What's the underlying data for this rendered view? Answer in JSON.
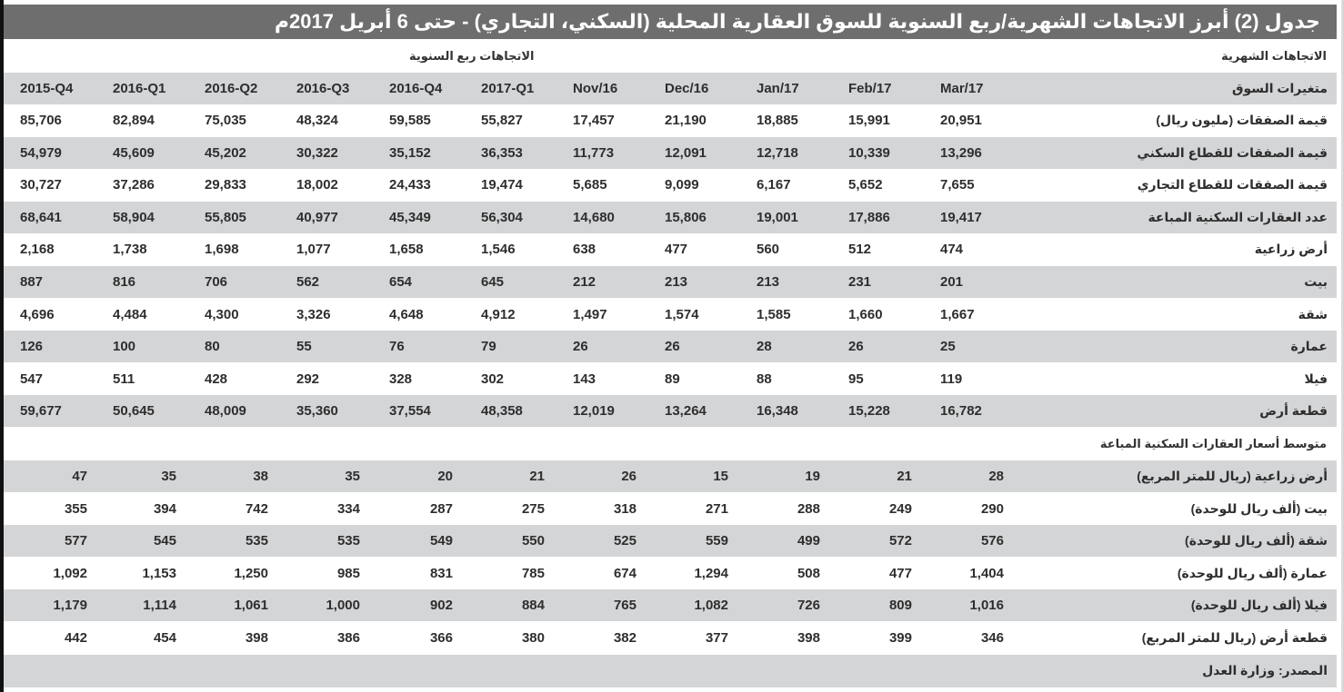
{
  "title": "جدول (2) أبرز الاتجاهات الشهرية/ربع السنوية للسوق العقارية المحلية (السكني، التجاري) - حتى 6 أبريل 2017م",
  "section_monthly": "الاتجاهات الشهرية",
  "section_quarterly": "الاتجاهات ربع السنوية",
  "header": {
    "label": "متغيرات السوق",
    "columns": [
      "2015-Q4",
      "2016-Q1",
      "2016-Q2",
      "2016-Q3",
      "2016-Q4",
      "2017-Q1",
      "Nov/16",
      "Dec/16",
      "Jan/17",
      "Feb/17",
      "Mar/17"
    ]
  },
  "rows": [
    {
      "label": "قيمة الصفقات (مليون ريال)",
      "values": [
        "85,706",
        "82,894",
        "75,035",
        "48,324",
        "59,585",
        "55,827",
        "17,457",
        "21,190",
        "18,885",
        "15,991",
        "20,951"
      ]
    },
    {
      "label": "قيمة الصفقات للقطاع السكني",
      "values": [
        "54,979",
        "45,609",
        "45,202",
        "30,322",
        "35,152",
        "36,353",
        "11,773",
        "12,091",
        "12,718",
        "10,339",
        "13,296"
      ]
    },
    {
      "label": "قيمة الصفقات للقطاع التجاري",
      "values": [
        "30,727",
        "37,286",
        "29,833",
        "18,002",
        "24,433",
        "19,474",
        "5,685",
        "9,099",
        "6,167",
        "5,652",
        "7,655"
      ]
    },
    {
      "label": "عدد العقارات السكنية المباعة",
      "values": [
        "68,641",
        "58,904",
        "55,805",
        "40,977",
        "45,349",
        "56,304",
        "14,680",
        "15,806",
        "19,001",
        "17,886",
        "19,417"
      ]
    },
    {
      "label": "أرض زراعية",
      "values": [
        "2,168",
        "1,738",
        "1,698",
        "1,077",
        "1,658",
        "1,546",
        "638",
        "477",
        "560",
        "512",
        "474"
      ]
    },
    {
      "label": "بيت",
      "values": [
        "887",
        "816",
        "706",
        "562",
        "654",
        "645",
        "212",
        "213",
        "213",
        "231",
        "201"
      ]
    },
    {
      "label": "شقة",
      "values": [
        "4,696",
        "4,484",
        "4,300",
        "3,326",
        "4,648",
        "4,912",
        "1,497",
        "1,574",
        "1,585",
        "1,660",
        "1,667"
      ]
    },
    {
      "label": "عمارة",
      "values": [
        "126",
        "100",
        "80",
        "55",
        "76",
        "79",
        "26",
        "26",
        "28",
        "26",
        "25"
      ]
    },
    {
      "label": "فيلا",
      "values": [
        "547",
        "511",
        "428",
        "292",
        "328",
        "302",
        "143",
        "89",
        "88",
        "95",
        "119"
      ]
    },
    {
      "label": "قطعة أرض",
      "values": [
        "59,677",
        "50,645",
        "48,009",
        "35,360",
        "37,554",
        "48,358",
        "12,019",
        "13,264",
        "16,348",
        "15,228",
        "16,782"
      ]
    }
  ],
  "prices_section": "متوسط أسعار العقارات السكنية المباعة",
  "price_rows": [
    {
      "label": "أرض زراعية  (ريال للمتر المربع)",
      "values": [
        "47",
        "35",
        "38",
        "35",
        "20",
        "21",
        "26",
        "15",
        "19",
        "21",
        "28"
      ]
    },
    {
      "label": "بيت  (ألف ريال للوحدة)",
      "values": [
        "355",
        "394",
        "742",
        "334",
        "287",
        "275",
        "318",
        "271",
        "288",
        "249",
        "290"
      ]
    },
    {
      "label": "شقة  (ألف ريال للوحدة)",
      "values": [
        "577",
        "545",
        "535",
        "535",
        "549",
        "550",
        "525",
        "559",
        "499",
        "572",
        "576"
      ]
    },
    {
      "label": "عمارة  (ألف ريال للوحدة)",
      "values": [
        "1,092",
        "1,153",
        "1,250",
        "985",
        "831",
        "785",
        "674",
        "1,294",
        "508",
        "477",
        "1,404"
      ]
    },
    {
      "label": "فيلا  (ألف ريال للوحدة)",
      "values": [
        "1,179",
        "1,114",
        "1,061",
        "1,000",
        "902",
        "884",
        "765",
        "1,082",
        "726",
        "809",
        "1,016"
      ]
    },
    {
      "label": "قطعة أرض  (ريال للمتر المربع)",
      "values": [
        "442",
        "454",
        "398",
        "386",
        "366",
        "380",
        "382",
        "377",
        "398",
        "399",
        "346"
      ]
    }
  ],
  "source": "المصدر: وزارة العدل"
}
